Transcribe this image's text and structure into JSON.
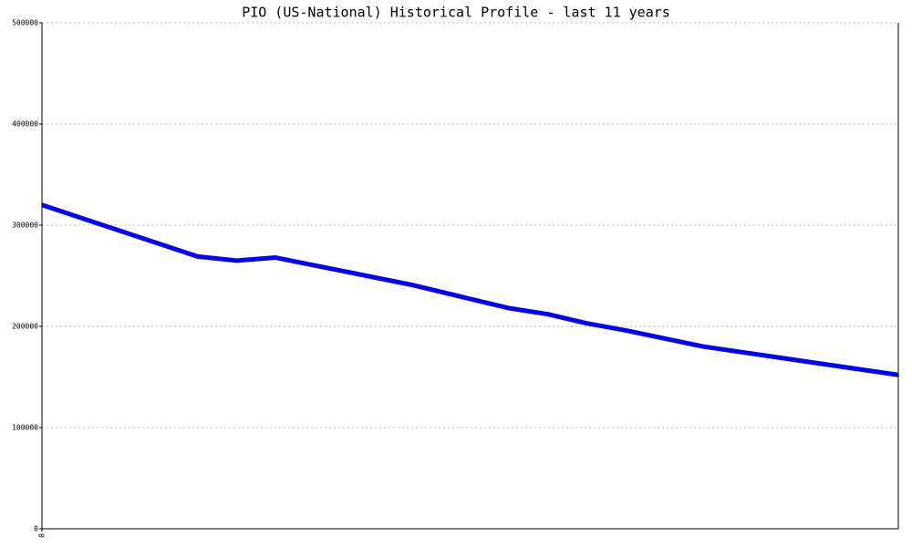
{
  "chart_data": {
    "type": "line",
    "title": "PIO (US-National) Historical Profile - last 11 years",
    "x": [
      0,
      24,
      30,
      36,
      57,
      72,
      78,
      84,
      90,
      102,
      132
    ],
    "values": [
      320000,
      269000,
      265000,
      268000,
      241000,
      218000,
      212000,
      203000,
      196000,
      180000,
      152000
    ],
    "color": "#0000ff",
    "xlim": [
      0,
      132
    ],
    "xticks": [
      0
    ],
    "ylim": [
      0,
      500000
    ],
    "yticks": [
      0,
      100000,
      200000,
      300000,
      400000,
      500000
    ],
    "grid": true
  }
}
